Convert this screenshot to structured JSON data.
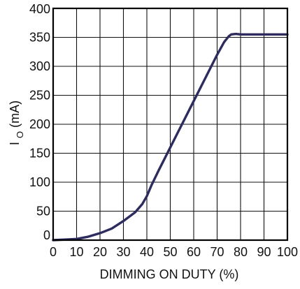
{
  "chart_data": {
    "type": "line",
    "title": "",
    "xlabel": "DIMMING ON DUTY (%)",
    "ylabel": {
      "main": "I",
      "subscript": "O",
      "unit": " (mA)"
    },
    "xlim": [
      0,
      100
    ],
    "ylim": [
      0,
      400
    ],
    "x_ticks": [
      0,
      10,
      20,
      30,
      40,
      50,
      60,
      70,
      80,
      90,
      100
    ],
    "y_ticks": [
      0,
      50,
      100,
      150,
      200,
      250,
      300,
      350,
      400
    ],
    "grid": true,
    "legend": "none",
    "series": [
      {
        "line_color": "#2e2c5e",
        "x": [
          0,
          5,
          10,
          15,
          20,
          25,
          30,
          35,
          38,
          40,
          42,
          45,
          50,
          55,
          60,
          65,
          70,
          73,
          75,
          76,
          78,
          80,
          90,
          100
        ],
        "y": [
          0,
          1,
          2,
          6,
          12,
          20,
          33,
          48,
          62,
          76,
          95,
          120,
          160,
          200,
          240,
          280,
          320,
          342,
          352,
          355,
          356,
          355,
          355,
          355
        ]
      }
    ]
  }
}
